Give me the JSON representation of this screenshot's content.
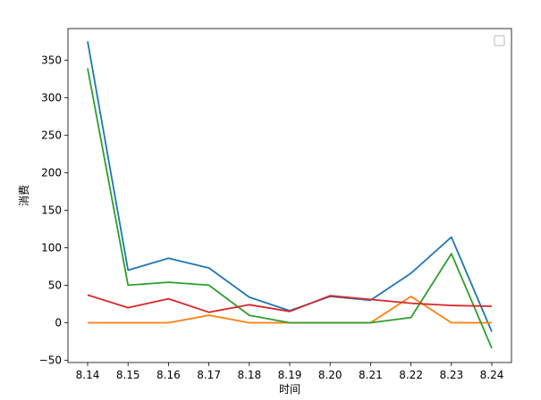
{
  "chart_data": {
    "type": "line",
    "xlabel": "时间",
    "ylabel": "消费",
    "categories": [
      "8.14",
      "8.15",
      "8.16",
      "8.17",
      "8.18",
      "8.19",
      "8.20",
      "8.21",
      "8.22",
      "8.23",
      "8.24"
    ],
    "y_ticks": [
      "−50",
      "0",
      "50",
      "100",
      "150",
      "200",
      "250",
      "300",
      "350"
    ],
    "ylim": [
      -53,
      392
    ],
    "grid": false,
    "legend_placement": "top-right",
    "series": [
      {
        "color": "#1f77b4",
        "values": [
          375,
          70,
          86,
          73,
          34,
          16,
          35,
          30,
          66,
          114,
          -12
        ]
      },
      {
        "color": "#ff7f0e",
        "values": [
          0,
          0,
          0,
          10,
          0,
          0,
          0,
          0,
          35,
          0,
          0
        ]
      },
      {
        "color": "#2ca02c",
        "values": [
          339,
          50,
          54,
          50,
          10,
          0,
          0,
          0,
          7,
          92,
          -34
        ]
      },
      {
        "color": "#d62728",
        "values": [
          37,
          20,
          32,
          14,
          24,
          15,
          36,
          31,
          26,
          23,
          22
        ]
      }
    ]
  }
}
